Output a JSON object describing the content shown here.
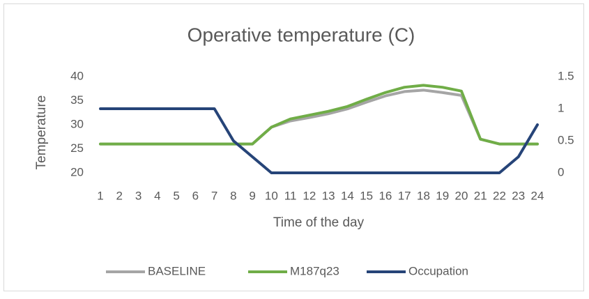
{
  "chart_data": {
    "type": "line",
    "title": "Operative temperature (C)",
    "y_label": "Temperature",
    "x_label": "Time of the day",
    "categories": [
      "1",
      "2",
      "3",
      "4",
      "5",
      "6",
      "7",
      "8",
      "9",
      "10",
      "11",
      "12",
      "13",
      "14",
      "15",
      "16",
      "17",
      "18",
      "19",
      "20",
      "21",
      "22",
      "23",
      "24"
    ],
    "series": [
      {
        "name": "BASELINE",
        "color": "#a5a5a5",
        "values": [
          26,
          26,
          26,
          26,
          26,
          26,
          26,
          26,
          26,
          29.5,
          30.8,
          31.5,
          32.3,
          33.3,
          34.7,
          36,
          36.9,
          37.2,
          36.7,
          36.1,
          27,
          26,
          26,
          26
        ]
      },
      {
        "name": "M187q23",
        "color": "#70ad47",
        "values": [
          26,
          26,
          26,
          26,
          26,
          26,
          26,
          26,
          26,
          29.5,
          31.2,
          32,
          32.8,
          33.8,
          35.3,
          36.7,
          37.8,
          38.2,
          37.8,
          37,
          27,
          26,
          26,
          26
        ]
      },
      {
        "name": "Occupation",
        "color": "#264478",
        "axis": "y2",
        "values": [
          1,
          1,
          1,
          1,
          1,
          1,
          1,
          0.5,
          0.25,
          0,
          0,
          0,
          0,
          0,
          0,
          0,
          0,
          0,
          0,
          0,
          0,
          0,
          0.25,
          0.75
        ]
      }
    ],
    "ylim": [
      20,
      40
    ],
    "yticks": [
      20,
      25,
      30,
      35,
      40
    ],
    "y2lim": [
      0,
      1.5
    ],
    "y2ticks": [
      0,
      0.5,
      1,
      1.5
    ],
    "legend": "bottom",
    "grid": false
  }
}
